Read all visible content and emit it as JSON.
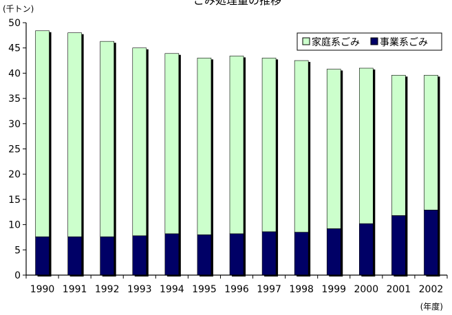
{
  "chart_data": {
    "type": "bar",
    "stacked": true,
    "title": "ごみ処理量の推移",
    "y_unit_label": "(千トン)",
    "x_unit_label": "(年度)",
    "categories": [
      "1990",
      "1991",
      "1992",
      "1993",
      "1994",
      "1995",
      "1996",
      "1997",
      "1998",
      "1999",
      "2000",
      "2001",
      "2002"
    ],
    "series": [
      {
        "name": "事業系ごみ",
        "color": "#000066",
        "values": [
          7.6,
          7.6,
          7.6,
          7.8,
          8.2,
          8.0,
          8.2,
          8.6,
          8.5,
          9.2,
          10.2,
          11.8,
          12.9
        ]
      },
      {
        "name": "家庭系ごみ",
        "color": "#ccffcc",
        "values": [
          40.8,
          40.4,
          38.7,
          37.2,
          35.7,
          35.0,
          35.2,
          34.4,
          34.0,
          31.6,
          30.8,
          27.8,
          26.7
        ]
      }
    ],
    "legend_order": [
      "家庭系ごみ",
      "事業系ごみ"
    ],
    "legend_position": "top-right",
    "ylim": [
      0,
      50
    ],
    "yticks": [
      0,
      5,
      10,
      15,
      20,
      25,
      30,
      35,
      40,
      45,
      50
    ],
    "grid": false
  }
}
